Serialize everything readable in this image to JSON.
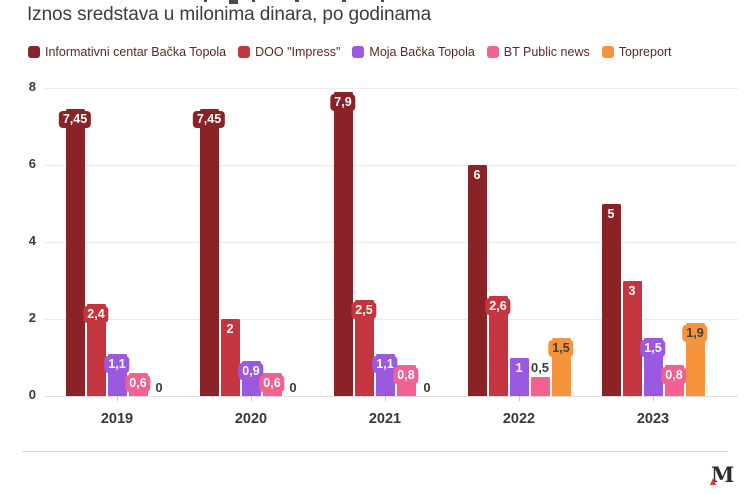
{
  "header": {
    "title": "Iznos sredstava u milonima dinara, po godinama"
  },
  "chart_data": {
    "type": "bar",
    "title": "Iznos sredstava u milonima dinara, po godinama",
    "categories": [
      "2019",
      "2020",
      "2021",
      "2022",
      "2023"
    ],
    "series": [
      {
        "name": "Informativni centar Bačka Topola",
        "color": "#8a2327",
        "label_color": "#ffffff",
        "values": [
          7.45,
          7.45,
          7.9,
          6,
          5
        ],
        "labels": [
          "7,45",
          "7,45",
          "7,9",
          "6",
          "5"
        ]
      },
      {
        "name": "DOO \"Impress\"",
        "color": "#c53540",
        "label_color": "#ffffff",
        "values": [
          2.4,
          2,
          2.5,
          2.6,
          3
        ],
        "labels": [
          "2,4",
          "2",
          "2,5",
          "2,6",
          "3"
        ]
      },
      {
        "name": "Moja Bačka Topola",
        "color": "#9b59e0",
        "label_color": "#ffffff",
        "values": [
          1.1,
          0.9,
          1.1,
          1,
          1.5
        ],
        "labels": [
          "1,1",
          "0,9",
          "1,1",
          "1",
          "1,5"
        ]
      },
      {
        "name": "BT Public news",
        "color": "#f2618f",
        "label_color": "#ffffff",
        "values": [
          0.6,
          0.6,
          0.8,
          0.5,
          0.8
        ],
        "labels": [
          "0,6",
          "0,6",
          "0,8",
          "0,5",
          "0,8"
        ]
      },
      {
        "name": "Topreport",
        "color": "#f5943a",
        "label_color": "#3d3d3d",
        "values": [
          0,
          0,
          0,
          1.5,
          1.9
        ],
        "labels": [
          "0",
          "0",
          "0",
          "1,5",
          "1,9"
        ]
      }
    ],
    "xlabel": "",
    "ylabel": "",
    "yticks": [
      0,
      2,
      4,
      6,
      8
    ],
    "ytick_labels": [
      "0",
      "2",
      "4",
      "6",
      "8"
    ],
    "ylim": [
      0,
      8
    ],
    "grid": true,
    "legend_position": "top",
    "zero_label": "0"
  },
  "colors": {
    "grid": "#ececec",
    "axis_text": "#3a3a3a",
    "legend_text": "#5e2727",
    "logo_accent": "#d93936"
  },
  "footer": {
    "logo_text": "M"
  }
}
